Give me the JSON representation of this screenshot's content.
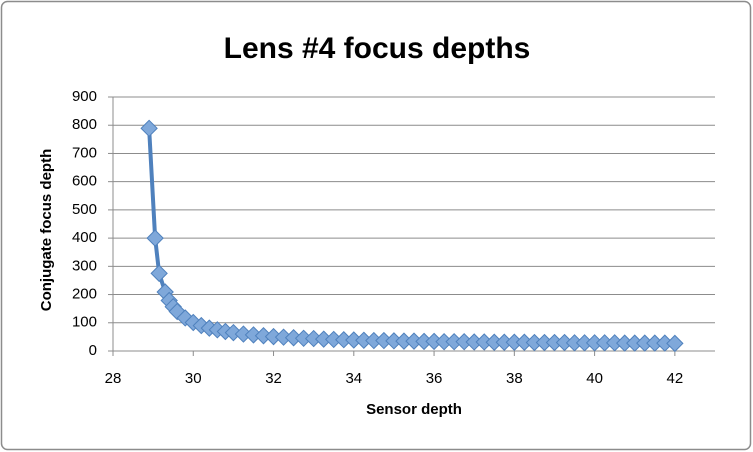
{
  "chart_data": {
    "type": "line",
    "title": "Lens #4 focus depths",
    "x_label": "Sensor depth",
    "y_label": "Conjugate focus depth",
    "x": [
      28.9,
      29.05,
      29.15,
      29.3,
      29.4,
      29.5,
      29.6,
      29.8,
      30,
      30.2,
      30.4,
      30.6,
      30.8,
      31,
      31.25,
      31.5,
      31.75,
      32,
      32.25,
      32.5,
      32.75,
      33,
      33.25,
      33.5,
      33.75,
      34,
      34.25,
      34.5,
      34.75,
      35,
      35.25,
      35.5,
      35.75,
      36,
      36.25,
      36.5,
      36.75,
      37,
      37.25,
      37.5,
      37.75,
      38,
      38.25,
      38.5,
      38.75,
      39,
      39.25,
      39.5,
      39.75,
      40,
      40.25,
      40.5,
      40.75,
      41,
      41.25,
      41.5,
      41.75,
      42
    ],
    "values": [
      789,
      400,
      275,
      209,
      179,
      157,
      140,
      117,
      101,
      90,
      81,
      75,
      69,
      65,
      60,
      57,
      54,
      51,
      49,
      47,
      45,
      44,
      42,
      41,
      40,
      39,
      38,
      37,
      37,
      36,
      35,
      35,
      34,
      34,
      33,
      33,
      33,
      32,
      32,
      31,
      31,
      31,
      31,
      30,
      30,
      30,
      30,
      29,
      29,
      29,
      29,
      29,
      28,
      28,
      28,
      28,
      28,
      27
    ],
    "color": "#4f81bd",
    "marker": "diamond",
    "marker_color": "#7fa8da",
    "xlim": [
      28,
      43
    ],
    "xticks": [
      28,
      30,
      32,
      34,
      36,
      38,
      40,
      42
    ],
    "ylim": [
      0,
      900
    ],
    "yticks": [
      0,
      100,
      200,
      300,
      400,
      500,
      600,
      700,
      800,
      900
    ],
    "grid": true
  }
}
